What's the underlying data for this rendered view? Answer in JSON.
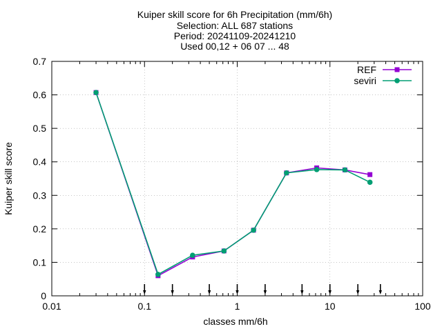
{
  "chart_data": {
    "type": "line",
    "title_lines": [
      "Kuiper skill score  for 6h Precipitation (mm/6h)",
      "Selection: ALL    687 stations",
      "Period: 20241109-20241210",
      "Used 00,12 + 06 07 ... 48"
    ],
    "xlabel": "classes mm/6h",
    "ylabel": "Kuiper skill score",
    "xscale": "log",
    "xlim": [
      0.01,
      100
    ],
    "ylim": [
      0,
      0.7
    ],
    "xticks": [
      0.01,
      0.1,
      1,
      10,
      100
    ],
    "xtick_labels": [
      "0.01",
      "0.1",
      "1",
      "10",
      "100"
    ],
    "yticks": [
      0,
      0.1,
      0.2,
      0.3,
      0.4,
      0.5,
      0.6,
      0.7
    ],
    "ytick_labels": [
      "0",
      "0.1",
      "0.2",
      "0.3",
      "0.4",
      "0.5",
      "0.6",
      "0.7"
    ],
    "grid": true,
    "legend_position": "top-right",
    "class_markers_x": [
      0.1,
      0.2,
      0.5,
      1,
      2,
      5,
      10,
      20,
      35
    ],
    "series": [
      {
        "name": "REF",
        "color": "#9400d3",
        "x": [
          0.03,
          0.14,
          0.33,
          0.72,
          1.5,
          3.4,
          7.2,
          14.5,
          27
        ],
        "y": [
          0.607,
          0.06,
          0.116,
          0.134,
          0.196,
          0.367,
          0.382,
          0.376,
          0.362
        ]
      },
      {
        "name": "seviri",
        "color": "#009e73",
        "x": [
          0.03,
          0.14,
          0.33,
          0.72,
          1.5,
          3.4,
          7.2,
          14.5,
          27
        ],
        "y": [
          0.607,
          0.064,
          0.121,
          0.134,
          0.196,
          0.367,
          0.377,
          0.376,
          0.339
        ]
      }
    ]
  }
}
